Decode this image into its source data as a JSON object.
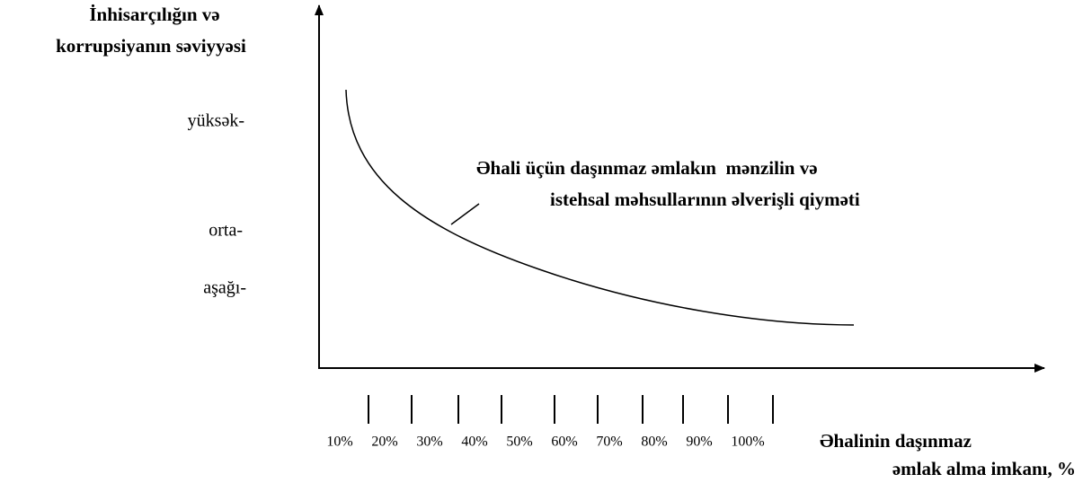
{
  "y_axis_title": [
    "İnhisarçılığın və",
    "korrupsiyanın səviyyəsi"
  ],
  "y_levels": [
    "yüksək-",
    "orta-",
    "aşağı-"
  ],
  "curve_label": [
    "Əhali üçün daşınmaz əmlakın  mənzilin və",
    "istehsal məhsullarının əlverişli qiyməti"
  ],
  "x_tick_labels": [
    "10%",
    "20%",
    "30%",
    "40%",
    "50%",
    "60%",
    "70%",
    "80%",
    "90%",
    "100%"
  ],
  "x_axis_title": [
    "Əhalinin daşınmaz",
    "əmlak alma imkanı, %"
  ]
}
